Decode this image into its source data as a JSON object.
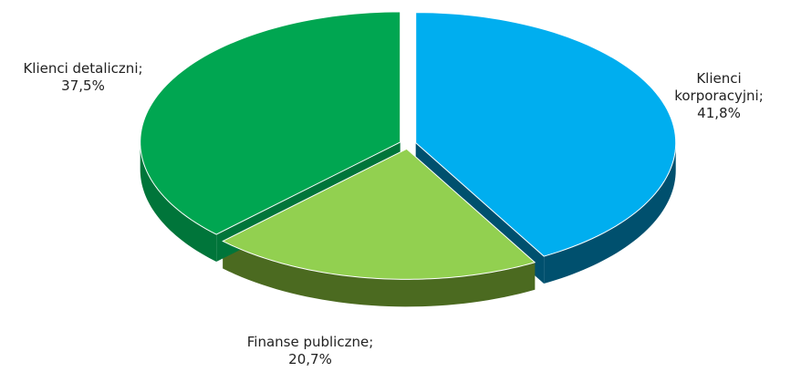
{
  "chart_data": {
    "type": "pie",
    "categories": [
      "Klienci korporacyjni;",
      "Finanse publiczne;",
      "Klienci detaliczni;"
    ],
    "values": [
      41.8,
      20.7,
      37.5
    ],
    "value_labels": [
      "41,8%",
      "20,7%",
      "37,5%"
    ],
    "colors": [
      "#00aeef",
      "#92d050",
      "#00a651"
    ],
    "side_colors": [
      "#00506e",
      "#4b6a20",
      "#00753a"
    ]
  }
}
